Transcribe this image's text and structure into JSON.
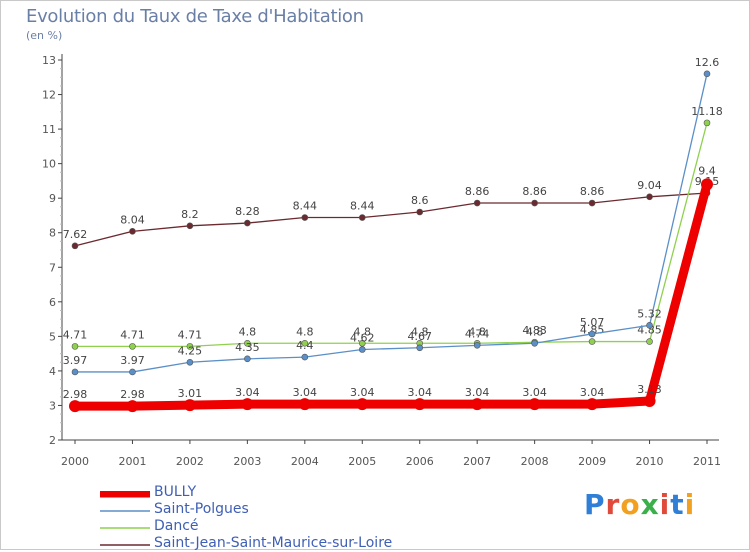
{
  "header": {
    "title": "Evolution du Taux de Taxe d'Habitation",
    "subtitle": "(en %)"
  },
  "colors": {
    "axis": "#444444",
    "grid": "#cccccc",
    "label": "#555555"
  },
  "logo": {
    "text": "Proxiti",
    "letter_colors": [
      "#2f7fd6",
      "#e04a3a",
      "#f2a020",
      "#3bb04a",
      "#e04a3a",
      "#2f7fd6",
      "#f2a020"
    ]
  },
  "chart_data": {
    "type": "line",
    "title": "Evolution du Taux de Taxe d'Habitation",
    "subtitle": "(en %)",
    "xlabel": "",
    "ylabel": "(en %)",
    "x": [
      "2000",
      "2001",
      "2002",
      "2003",
      "2004",
      "2005",
      "2006",
      "2007",
      "2008",
      "2009",
      "2010",
      "2011"
    ],
    "ylim": [
      2,
      13
    ],
    "yticks": [
      "2",
      "3",
      "4",
      "5",
      "6",
      "7",
      "8",
      "9",
      "10",
      "11",
      "12",
      "13"
    ],
    "grid": false,
    "legend_position": "bottom-left",
    "series": [
      {
        "name": "Saint-Jean-Saint-Maurice-sur-Loire",
        "color": "#6b2a30",
        "values": [
          7.62,
          8.04,
          8.2,
          8.28,
          8.44,
          8.44,
          8.6,
          8.86,
          8.86,
          8.86,
          9.04,
          9.15
        ],
        "labels": [
          "7.62",
          "8.04",
          "8.2",
          "8.28",
          "8.44",
          "8.44",
          "8.6",
          "8.86",
          "8.86",
          "8.86",
          "9.04",
          "9.15"
        ]
      },
      {
        "name": "Dancé",
        "color": "#8fd14f",
        "values": [
          4.71,
          4.71,
          4.71,
          4.8,
          4.8,
          4.8,
          4.8,
          4.8,
          4.83,
          4.85,
          4.85,
          11.18
        ],
        "labels": [
          "4.71",
          "4.71",
          "4.71",
          "4.8",
          "4.8",
          "4.8",
          "4.8",
          "4.8",
          "4.83",
          "4.85",
          "4.85",
          "11.18"
        ]
      },
      {
        "name": "Saint-Polgues",
        "color": "#5b8fc7",
        "values": [
          3.97,
          3.97,
          4.25,
          4.35,
          4.4,
          4.62,
          4.67,
          4.74,
          4.8,
          5.07,
          5.32,
          12.6
        ],
        "labels": [
          "3.97",
          "3.97",
          "4.25",
          "4.35",
          "4.4",
          "4.62",
          "4.67",
          "4.74",
          "4.8",
          "5.07",
          "5.32",
          "12.6"
        ]
      },
      {
        "name": "BULLY",
        "color": "#ee0000",
        "values": [
          2.98,
          2.98,
          3.01,
          3.04,
          3.04,
          3.04,
          3.04,
          3.04,
          3.04,
          3.04,
          3.13,
          9.4
        ],
        "labels": [
          "2.98",
          "2.98",
          "3.01",
          "3.04",
          "3.04",
          "3.04",
          "3.04",
          "3.04",
          "3.04",
          "3.04",
          "3.13",
          "9.4"
        ]
      }
    ],
    "legend": [
      "BULLY",
      "Saint-Polgues",
      "Dancé",
      "Saint-Jean-Saint-Maurice-sur-Loire"
    ]
  }
}
